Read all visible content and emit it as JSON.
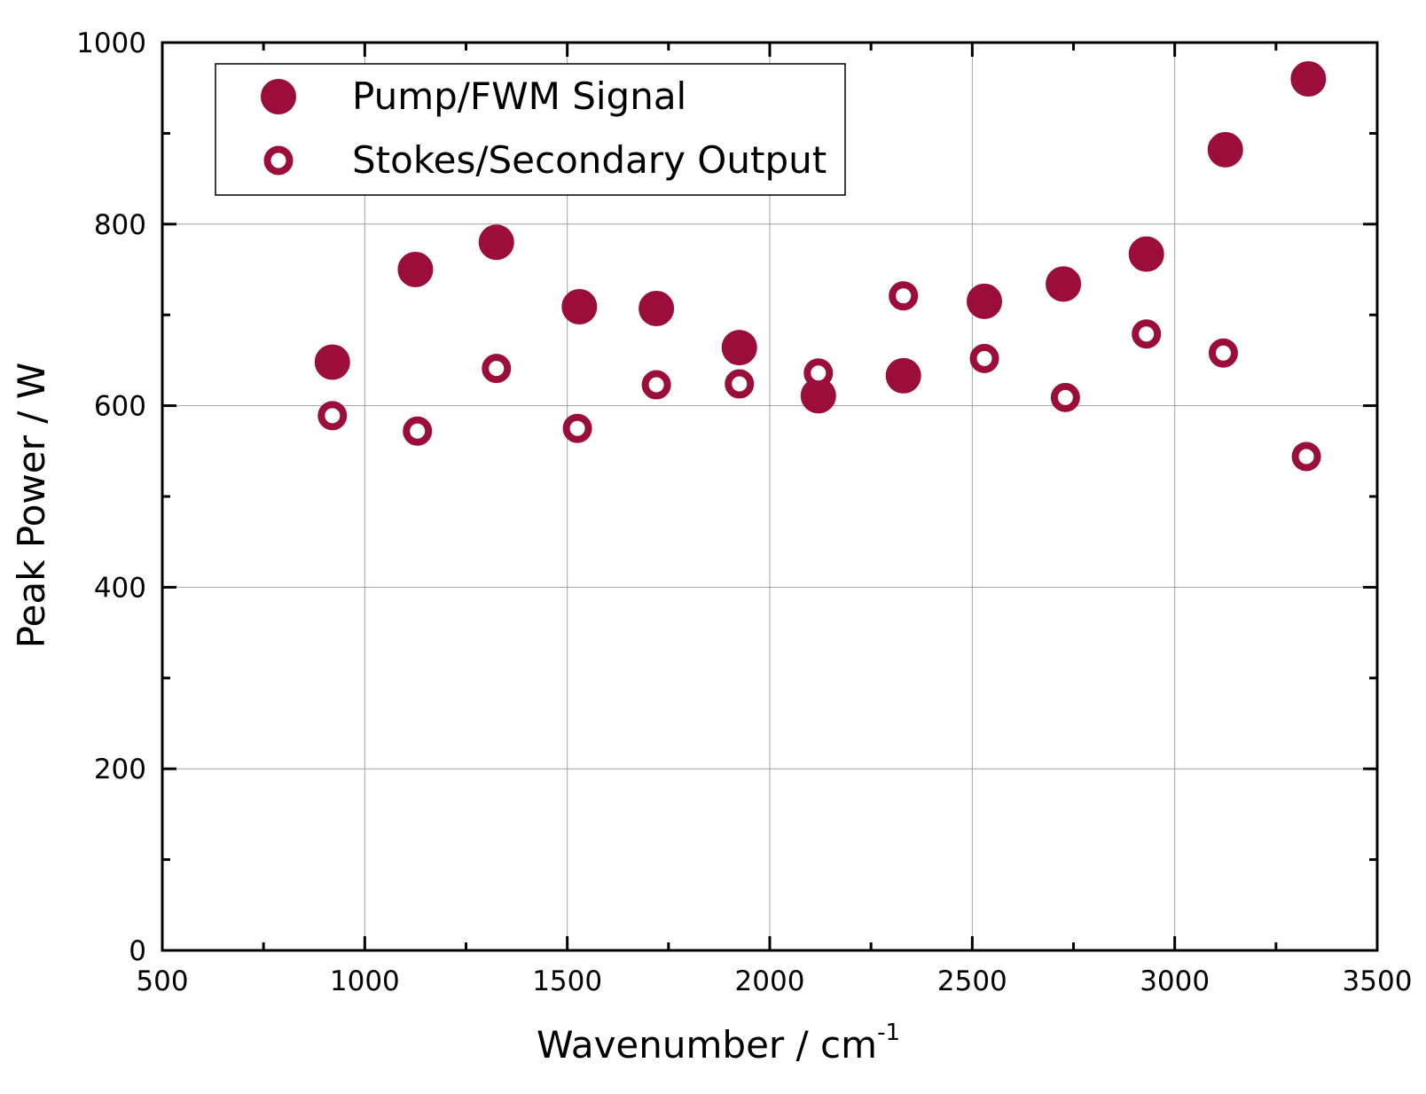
{
  "chart_data": {
    "type": "scatter",
    "xlabel": "Wavenumber / cm",
    "xlabel_superscript": "-1",
    "ylabel": "Peak Power / W",
    "xlim": [
      500,
      3500
    ],
    "ylim": [
      0,
      1000
    ],
    "x_ticks": [
      500,
      1000,
      1500,
      2000,
      2500,
      3000,
      3500
    ],
    "y_ticks": [
      0,
      200,
      400,
      600,
      800,
      1000
    ],
    "x_minor_step": 250,
    "y_minor_step": 100,
    "grid": true,
    "legend_position": "top-left",
    "series": [
      {
        "name": "Pump/FWM Signal",
        "marker": "filled-circle",
        "color": "#9b0e3a",
        "points": [
          [
            920,
            648
          ],
          [
            1125,
            750
          ],
          [
            1325,
            780
          ],
          [
            1530,
            709
          ],
          [
            1720,
            707
          ],
          [
            1925,
            664
          ],
          [
            2120,
            611
          ],
          [
            2330,
            633
          ],
          [
            2530,
            715
          ],
          [
            2725,
            734
          ],
          [
            2930,
            767
          ],
          [
            3125,
            882
          ],
          [
            3330,
            960
          ]
        ]
      },
      {
        "name": "Stokes/Secondary Output",
        "marker": "open-circle",
        "color": "#9b0e3a",
        "points": [
          [
            920,
            589
          ],
          [
            1130,
            572
          ],
          [
            1325,
            641
          ],
          [
            1525,
            575
          ],
          [
            1720,
            623
          ],
          [
            1925,
            624
          ],
          [
            2120,
            636
          ],
          [
            2330,
            721
          ],
          [
            2530,
            652
          ],
          [
            2730,
            609
          ],
          [
            2930,
            679
          ],
          [
            3120,
            658
          ],
          [
            3325,
            544
          ]
        ]
      }
    ]
  }
}
